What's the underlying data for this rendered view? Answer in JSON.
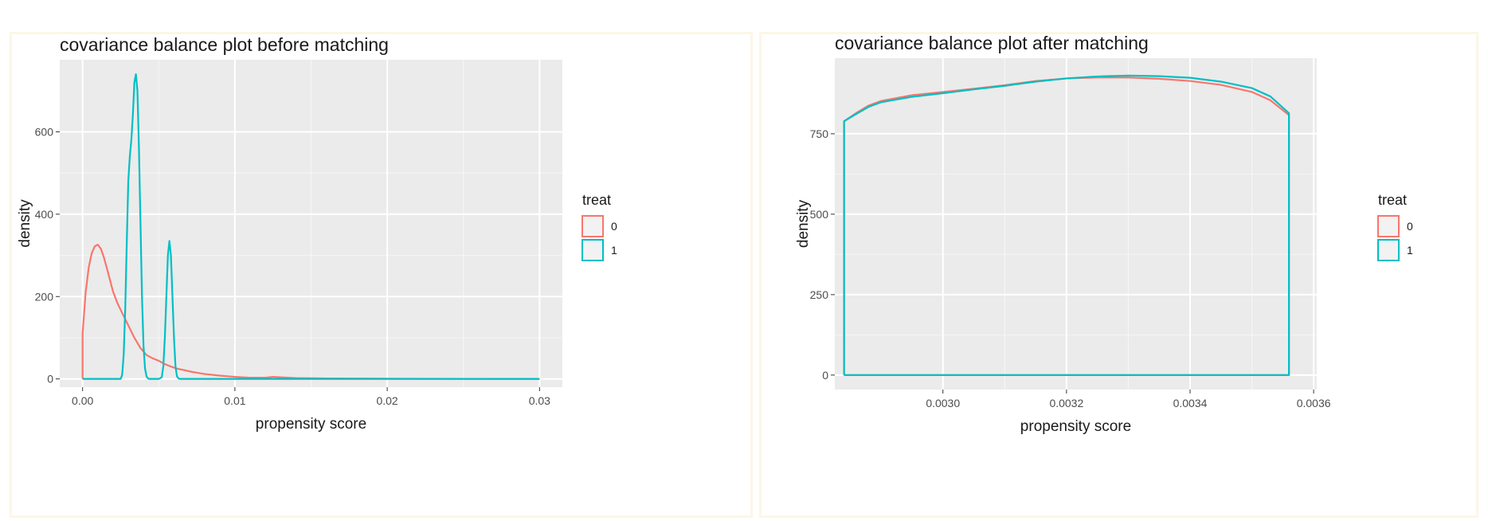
{
  "colors": {
    "treat0": "#F8766D",
    "treat1": "#00BFC4",
    "panel_bg": "#EBEBEB",
    "grid": "#FFFFFF"
  },
  "chart_data": [
    {
      "type": "line",
      "title": "covariance balance plot before matching",
      "xlabel": "propensity score",
      "ylabel": "density",
      "xlim": [
        -0.0015,
        0.0315
      ],
      "ylim": [
        -20,
        775
      ],
      "xticks": [
        0.0,
        0.01,
        0.02,
        0.03
      ],
      "xtick_labels": [
        "0.00",
        "0.01",
        "0.02",
        "0.03"
      ],
      "yticks": [
        0,
        200,
        400,
        600
      ],
      "ytick_labels": [
        "0",
        "200",
        "400",
        "600"
      ],
      "legend": {
        "title": "treat",
        "placement": "right",
        "entries": [
          "0",
          "1"
        ]
      },
      "series": [
        {
          "name": "0",
          "x": [
            0,
            0,
            0.0002,
            0.0004,
            0.0006,
            0.0008,
            0.001,
            0.0012,
            0.0014,
            0.0016,
            0.0018,
            0.002,
            0.0023,
            0.0026,
            0.003,
            0.0034,
            0.0038,
            0.0042,
            0.0046,
            0.005,
            0.0054,
            0.0058,
            0.0062,
            0.0066,
            0.0072,
            0.008,
            0.009,
            0.01,
            0.011,
            0.012,
            0.0125,
            0.013,
            0.014,
            0.016,
            0.02,
            0.025,
            0.03
          ],
          "y": [
            0,
            110,
            210,
            270,
            305,
            322,
            326,
            316,
            295,
            268,
            240,
            212,
            183,
            160,
            130,
            100,
            75,
            58,
            50,
            44,
            36,
            30,
            25,
            22,
            17,
            12,
            8,
            5,
            3,
            3,
            5,
            4,
            2,
            1,
            0.5,
            0.2,
            0
          ]
        },
        {
          "name": "1",
          "x": [
            0,
            0.0025,
            0.0026,
            0.0027,
            0.0028,
            0.0029,
            0.003,
            0.0031,
            0.0032,
            0.0033,
            0.0034,
            0.0035,
            0.0036,
            0.0037,
            0.0038,
            0.0039,
            0.004,
            0.0041,
            0.0042,
            0.0043,
            0.0044,
            0.0045,
            0.0048,
            0.005,
            0.0052,
            0.0053,
            0.0054,
            0.0055,
            0.0056,
            0.0057,
            0.0058,
            0.0059,
            0.006,
            0.0061,
            0.0062,
            0.0063,
            0.0064,
            0.0066,
            0.03
          ],
          "y": [
            0,
            0,
            10,
            60,
            170,
            330,
            480,
            540,
            580,
            640,
            720,
            740,
            700,
            560,
            380,
            200,
            80,
            25,
            6,
            1,
            0,
            0,
            0,
            0,
            4,
            30,
            100,
            200,
            300,
            335,
            300,
            200,
            100,
            30,
            6,
            1,
            0,
            0,
            0
          ]
        }
      ]
    },
    {
      "type": "line",
      "title": "covariance balance plot after matching",
      "xlabel": "propensity score",
      "ylabel": "density",
      "xlim": [
        0.002825,
        0.003605
      ],
      "ylim": [
        -45,
        985
      ],
      "xticks": [
        0.003,
        0.0032,
        0.0034,
        0.0036
      ],
      "xtick_labels": [
        "0.0030",
        "0.0032",
        "0.0034",
        "0.0036"
      ],
      "yticks": [
        0,
        250,
        500,
        750
      ],
      "ytick_labels": [
        "0",
        "250",
        "500",
        "750"
      ],
      "legend": {
        "title": "treat",
        "placement": "right",
        "entries": [
          "0",
          "1"
        ]
      },
      "series": [
        {
          "name": "0",
          "x": [
            0.00284,
            0.00284,
            0.00286,
            0.00288,
            0.0029,
            0.00295,
            0.003,
            0.00305,
            0.0031,
            0.00315,
            0.0032,
            0.00325,
            0.0033,
            0.00335,
            0.0034,
            0.00345,
            0.0035,
            0.00353,
            0.00356,
            0.00356,
            0.00284
          ],
          "y": [
            0,
            789,
            815,
            838,
            852,
            870,
            880,
            890,
            901,
            914,
            922,
            925,
            925,
            921,
            914,
            902,
            880,
            854,
            808,
            0,
            0
          ]
        },
        {
          "name": "1",
          "x": [
            0.00284,
            0.00284,
            0.00286,
            0.00288,
            0.0029,
            0.00295,
            0.003,
            0.00305,
            0.0031,
            0.00315,
            0.0032,
            0.00325,
            0.0033,
            0.00335,
            0.0034,
            0.00345,
            0.0035,
            0.00353,
            0.00356,
            0.00356,
            0.00284
          ],
          "y": [
            0,
            789,
            812,
            834,
            848,
            865,
            876,
            888,
            899,
            912,
            922,
            928,
            931,
            929,
            924,
            912,
            892,
            866,
            814,
            0,
            0
          ]
        }
      ]
    }
  ]
}
